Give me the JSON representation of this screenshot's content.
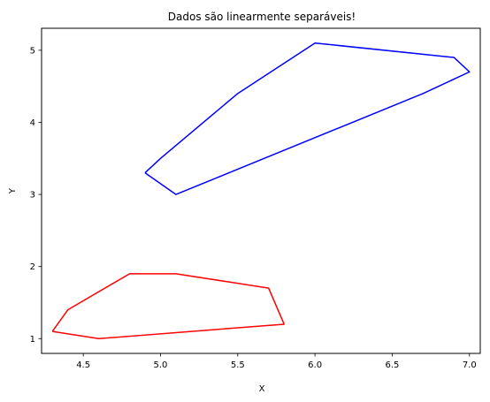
{
  "chart_data": {
    "type": "line",
    "title": "Dados são linearmente separáveis!",
    "xlabel": "X",
    "ylabel": "Y",
    "xlim": [
      4.23,
      7.07
    ],
    "ylim": [
      0.795,
      5.305
    ],
    "xticks": [
      "4.5",
      "5.0",
      "5.5",
      "6.0",
      "6.5",
      "7.0"
    ],
    "yticks": [
      "1",
      "2",
      "3",
      "4",
      "5"
    ],
    "grid": false,
    "legend": "none",
    "series": [
      {
        "color": "#ff0000",
        "x": [
          4.3,
          4.4,
          4.8,
          5.1,
          5.7,
          5.8,
          4.6,
          4.3
        ],
        "y": [
          1.1,
          1.4,
          1.9,
          1.9,
          1.7,
          1.2,
          1.0,
          1.1
        ]
      },
      {
        "color": "#0000ff",
        "x": [
          4.9,
          5.0,
          5.5,
          6.0,
          6.9,
          7.0,
          6.7,
          5.1,
          4.9
        ],
        "y": [
          3.3,
          3.5,
          4.4,
          5.1,
          4.9,
          4.7,
          4.4,
          3.0,
          3.3
        ]
      }
    ]
  }
}
